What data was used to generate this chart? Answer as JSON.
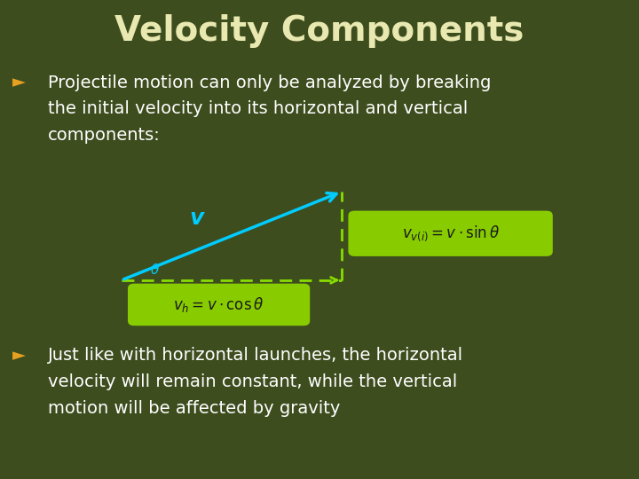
{
  "title": "Velocity Components",
  "title_color": "#e8e8b0",
  "title_fontsize": 28,
  "title_fontweight": "bold",
  "background_color": "#3d4d1e",
  "bullet_color": "#e8a020",
  "text_color": "#ffffff",
  "text_fontsize": 14,
  "bullet1_lines": [
    "Projectile motion can only be analyzed by breaking",
    "the initial velocity into its horizontal and vertical",
    "components:"
  ],
  "bullet2_lines": [
    "Just like with horizontal launches, the horizontal",
    "velocity will remain constant, while the vertical",
    "motion will be affected by gravity"
  ],
  "vector_color": "#00ccff",
  "vector_label": "v",
  "vector_label_color": "#00ccff",
  "dashed_color": "#88dd00",
  "formula_bg": "#88cc00",
  "formula_text_color": "#1a1a1a",
  "theta_color": "#00ccff",
  "ox": 0.19,
  "oy": 0.415,
  "hx": 0.535,
  "hy": 0.415,
  "vx": 0.535,
  "vy": 0.6
}
